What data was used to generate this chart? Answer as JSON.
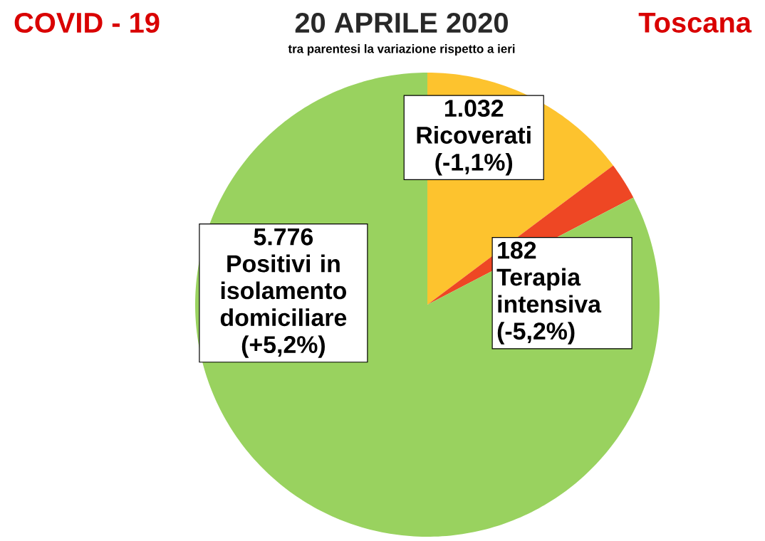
{
  "chart_data": {
    "type": "pie",
    "title": "20 APRILE 2020",
    "subtitle": "tra parentesi la variazione rispetto a ieri",
    "categories": [
      "Ricoverati",
      "Terapia intensiva",
      "Positivi in isolamento domiciliare"
    ],
    "values": [
      1032,
      182,
      5776
    ],
    "value_labels": [
      "1.032",
      "182",
      "5.776"
    ],
    "colors": [
      "#fdc32e",
      "#ee4724",
      "#99d25f"
    ],
    "annotations": [
      "COVID - 19",
      "Toscana",
      "(-1,1%)",
      "(-5,2%)",
      "(+5,2%)"
    ]
  }
}
